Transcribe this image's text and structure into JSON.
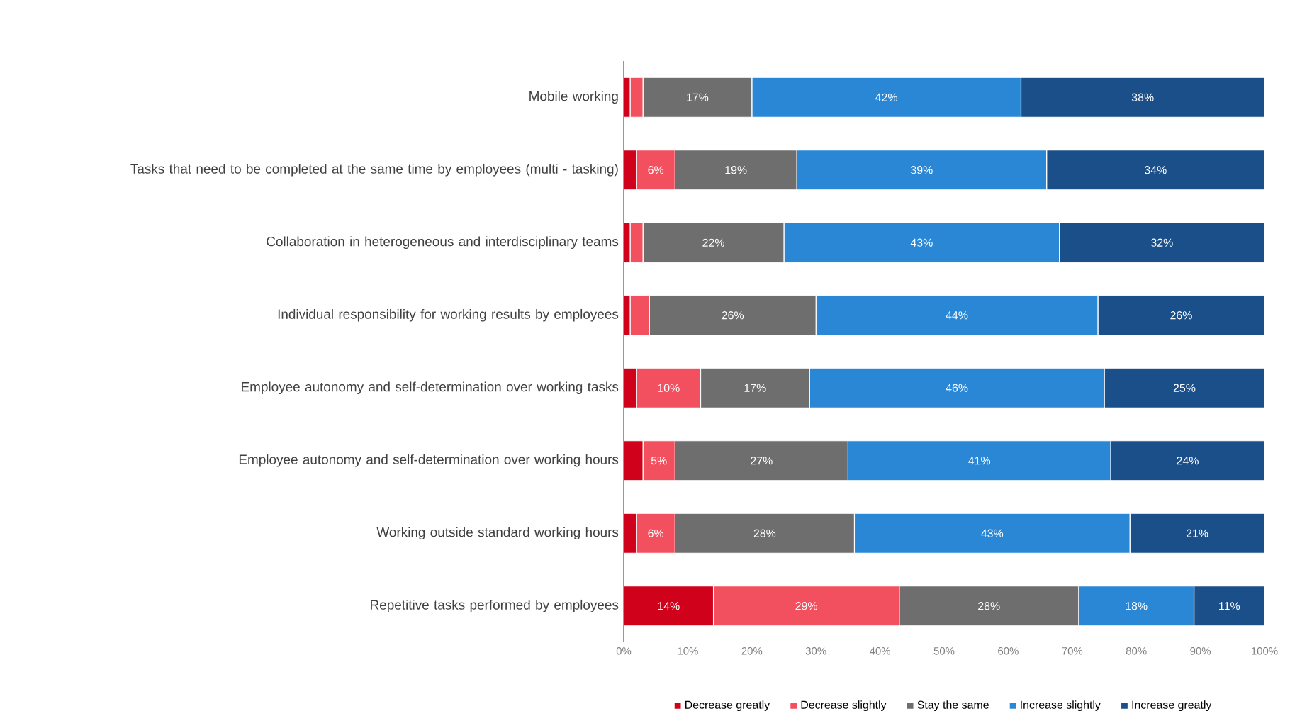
{
  "chart_data": {
    "type": "bar",
    "orientation": "horizontal",
    "stacked": true,
    "legend": "bottom",
    "grid": false,
    "categories": [
      "Mobile working",
      "Tasks that need to be completed at the same time by employees (multi - tasking)",
      "Collaboration in heterogeneous and interdisciplinary teams",
      "Individual responsibility for working results by employees",
      "Employee autonomy and self-determination over working tasks",
      "Employee autonomy and self-determination over working hours",
      "Working outside standard working hours",
      "Repetitive tasks performed by employees"
    ],
    "xlim": [
      0,
      100
    ],
    "xticks": [
      {
        "value": 0,
        "label": "0%"
      },
      {
        "value": 10,
        "label": "10%"
      },
      {
        "value": 20,
        "label": "20%"
      },
      {
        "value": 30,
        "label": "30%"
      },
      {
        "value": 40,
        "label": "40%"
      },
      {
        "value": 50,
        "label": "50%"
      },
      {
        "value": 60,
        "label": "60%"
      },
      {
        "value": 70,
        "label": "70%"
      },
      {
        "value": 80,
        "label": "80%"
      },
      {
        "value": 90,
        "label": "90%"
      },
      {
        "value": 100,
        "label": "100%"
      }
    ],
    "series": [
      {
        "name": "Decrease greatly",
        "color": "#d0021b",
        "values": [
          1,
          2,
          1,
          1,
          2,
          3,
          2,
          14
        ],
        "value_labels": [
          null,
          null,
          null,
          null,
          null,
          null,
          null,
          "14%"
        ]
      },
      {
        "name": "Decrease slightly",
        "color": "#f2505f",
        "values": [
          2,
          6,
          2,
          3,
          10,
          5,
          6,
          29
        ],
        "value_labels": [
          null,
          "6%",
          null,
          null,
          "10%",
          "5%",
          "6%",
          "29%"
        ]
      },
      {
        "name": "Stay the same",
        "color": "#6e6e6e",
        "values": [
          17,
          19,
          22,
          26,
          17,
          27,
          28,
          28
        ],
        "value_labels": [
          "17%",
          "19%",
          "22%",
          "26%",
          "17%",
          "27%",
          "28%",
          "28%"
        ]
      },
      {
        "name": "Increase slightly",
        "color": "#2a87d6",
        "values": [
          42,
          39,
          43,
          44,
          46,
          41,
          43,
          18
        ],
        "value_labels": [
          "42%",
          "39%",
          "43%",
          "44%",
          "46%",
          "41%",
          "43%",
          "18%"
        ]
      },
      {
        "name": "Increase greatly",
        "color": "#1b4f8a",
        "values": [
          38,
          34,
          32,
          26,
          25,
          24,
          21,
          11
        ],
        "value_labels": [
          "38%",
          "34%",
          "32%",
          "26%",
          "25%",
          "24%",
          "21%",
          "11%"
        ]
      }
    ]
  }
}
